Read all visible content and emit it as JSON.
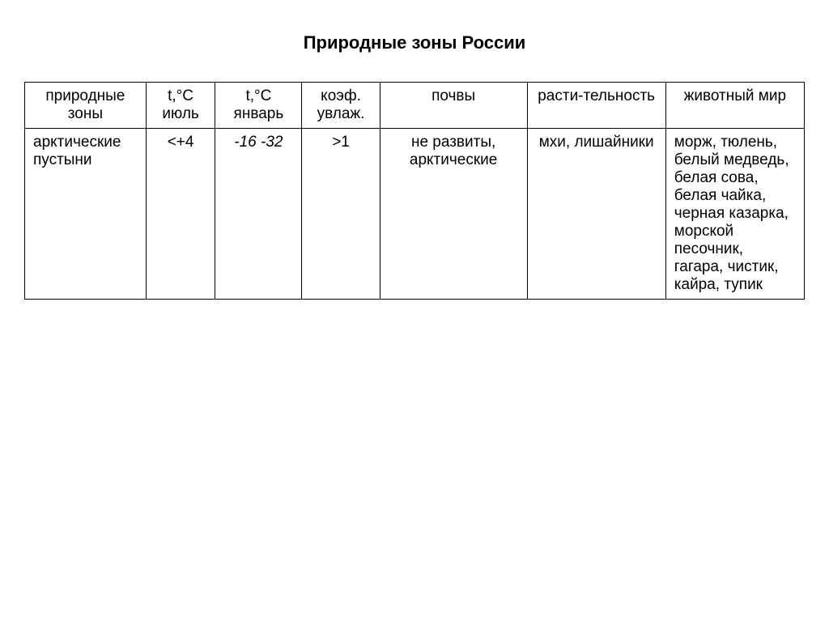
{
  "title": "Природные зоны России",
  "table": {
    "columns": [
      "природные зоны",
      "t,°C июль",
      "t,°C январь",
      "коэф. увлаж.",
      "почвы",
      "расти-тельность",
      "животный мир"
    ],
    "rows": [
      {
        "zone": "арктические пустыни",
        "t_july": "<+4",
        "t_january": "-16 -32",
        "coef": ">1",
        "soils": "не развиты, арктические",
        "plants": "мхи, лишайники",
        "animals": "морж, тюлень, белый медведь, белая сова, белая чайка, черная казарка, морской песочник, гагара, чистик, кайра, тупик"
      }
    ],
    "col_widths_pct": [
      14,
      8,
      10,
      9,
      17,
      16,
      16
    ],
    "border_color": "#000000",
    "background_color": "#ffffff",
    "text_color": "#000000",
    "header_fontsize": 19,
    "cell_fontsize": 19,
    "title_fontsize": 22,
    "t_january_italic": true
  }
}
